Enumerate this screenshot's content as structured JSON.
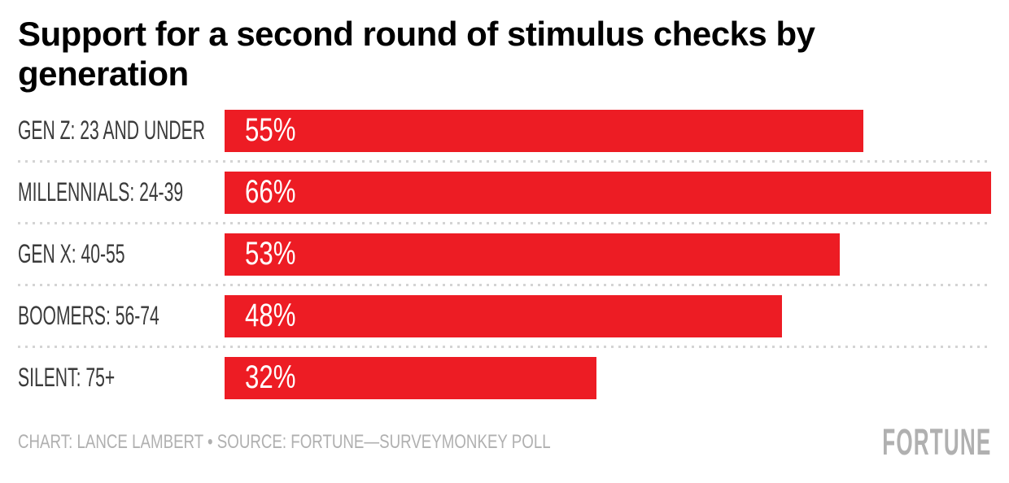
{
  "title": "Support for a second round of stimulus checks by generation",
  "chart_data": {
    "type": "bar",
    "orientation": "horizontal",
    "title": "Support for a second round of stimulus checks by generation",
    "categories": [
      "GEN Z: 23 AND UNDER",
      "MILLENNIALS: 24-39",
      "GEN X: 40-55",
      "BOOMERS: 56-74",
      "SILENT: 75+"
    ],
    "values": [
      55,
      66,
      53,
      48,
      32
    ],
    "value_labels": [
      "55%",
      "66%",
      "53%",
      "48%",
      "32%"
    ],
    "xlim": [
      0,
      66
    ],
    "grid": "dotted-row-separators",
    "legend": "none",
    "bar_color": "#ed1c24",
    "value_label_position": "inside-left"
  },
  "footer": {
    "credit": "CHART: LANCE LAMBERT • SOURCE: FORTUNE—SURVEYMONKEY POLL",
    "logo": "FORTUNE"
  },
  "colors": {
    "bar": "#ed1c24",
    "title_text": "#000000",
    "category_text": "#3a3a3a",
    "separator": "#d4d4d4",
    "muted_text": "#b0b0b0",
    "background": "#ffffff"
  }
}
